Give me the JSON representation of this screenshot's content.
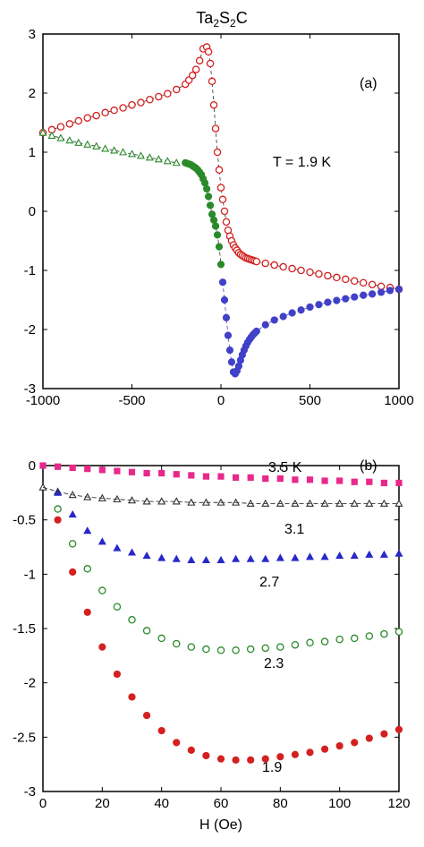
{
  "chart_data": [
    {
      "panel": "(a)",
      "type": "scatter",
      "title": "Ta2S2C",
      "title_main": "Ta",
      "title_sub1": "2",
      "title_mid": "S",
      "title_sub2": "2",
      "title_end": "C",
      "annotation": "T = 1.9 K",
      "xlim": [
        -1000,
        1000
      ],
      "ylim": [
        -3,
        3
      ],
      "x_ticks": [
        "-1000",
        "-500",
        "0",
        "500",
        "1000"
      ],
      "y_ticks": [
        "3",
        "2",
        "1",
        "0",
        "-1",
        "-2",
        "-3"
      ],
      "colors": {
        "red": "#d42020",
        "green": "#2a8a2a",
        "blue": "#4040c8"
      },
      "series": [
        {
          "color": "#d42020",
          "marker": "open-circle",
          "x": [
            -1000,
            -950,
            -900,
            -850,
            -800,
            -750,
            -700,
            -650,
            -600,
            -550,
            -500,
            -450,
            -400,
            -350,
            -300,
            -250,
            -200,
            -180,
            -160,
            -140,
            -120,
            -100,
            -80,
            -70,
            -60,
            -50,
            -40,
            -30,
            -20,
            -10,
            0,
            10,
            20,
            30,
            40,
            50,
            60,
            70,
            80,
            90,
            100,
            110,
            120,
            130,
            140,
            150,
            160,
            170,
            180,
            190,
            200,
            250,
            300,
            350,
            400,
            450,
            500,
            550,
            600,
            650,
            700,
            750,
            800,
            850,
            900,
            950,
            1000
          ],
          "y": [
            1.33,
            1.38,
            1.43,
            1.48,
            1.53,
            1.58,
            1.62,
            1.67,
            1.71,
            1.75,
            1.8,
            1.84,
            1.89,
            1.94,
            1.99,
            2.06,
            2.15,
            2.22,
            2.3,
            2.4,
            2.55,
            2.75,
            2.78,
            2.7,
            2.5,
            2.2,
            1.8,
            1.4,
            1.0,
            0.7,
            0.4,
            0.2,
            0.0,
            -0.18,
            -0.32,
            -0.42,
            -0.5,
            -0.57,
            -0.62,
            -0.66,
            -0.7,
            -0.73,
            -0.75,
            -0.77,
            -0.79,
            -0.8,
            -0.81,
            -0.82,
            -0.83,
            -0.84,
            -0.85,
            -0.88,
            -0.91,
            -0.94,
            -0.97,
            -1.0,
            -1.03,
            -1.06,
            -1.09,
            -1.12,
            -1.15,
            -1.18,
            -1.21,
            -1.24,
            -1.27,
            -1.29,
            -1.32
          ]
        },
        {
          "color": "#2a8a2a",
          "marker": "open-triangle",
          "x": [
            -1000,
            -950,
            -900,
            -850,
            -800,
            -750,
            -700,
            -650,
            -600,
            -550,
            -500,
            -450,
            -400,
            -350,
            -300,
            -250
          ],
          "y": [
            1.33,
            1.28,
            1.24,
            1.2,
            1.16,
            1.13,
            1.1,
            1.06,
            1.03,
            1.0,
            0.97,
            0.94,
            0.91,
            0.88,
            0.85,
            0.82
          ]
        },
        {
          "color": "#2a8a2a",
          "marker": "filled-circle",
          "x": [
            -200,
            -190,
            -180,
            -170,
            -160,
            -150,
            -140,
            -130,
            -120,
            -110,
            -100,
            -90,
            -80,
            -70,
            -60,
            -50,
            -40,
            -30,
            -20,
            -10,
            0
          ],
          "y": [
            0.82,
            0.81,
            0.8,
            0.79,
            0.77,
            0.75,
            0.73,
            0.7,
            0.66,
            0.62,
            0.55,
            0.48,
            0.38,
            0.25,
            0.1,
            -0.05,
            -0.15,
            -0.25,
            -0.4,
            -0.6,
            -0.9
          ]
        },
        {
          "color": "#4040c8",
          "marker": "filled-circle",
          "x": [
            10,
            20,
            30,
            40,
            50,
            60,
            70,
            80,
            90,
            100,
            110,
            120,
            130,
            140,
            150,
            160,
            170,
            180,
            190,
            200,
            250,
            300,
            350,
            400,
            450,
            500,
            550,
            600,
            650,
            700,
            750,
            800,
            850,
            900,
            950,
            1000
          ],
          "y": [
            -1.2,
            -1.5,
            -1.8,
            -2.1,
            -2.35,
            -2.55,
            -2.72,
            -2.75,
            -2.7,
            -2.62,
            -2.52,
            -2.43,
            -2.35,
            -2.28,
            -2.22,
            -2.17,
            -2.13,
            -2.09,
            -2.06,
            -2.03,
            -1.92,
            -1.84,
            -1.78,
            -1.72,
            -1.67,
            -1.62,
            -1.58,
            -1.54,
            -1.51,
            -1.48,
            -1.45,
            -1.42,
            -1.4,
            -1.37,
            -1.34,
            -1.32
          ]
        }
      ]
    },
    {
      "panel": "(b)",
      "type": "scatter",
      "xlabel": "H (Oe)",
      "xlim": [
        0,
        120
      ],
      "ylim": [
        -3,
        0
      ],
      "x_ticks": [
        "0",
        "20",
        "40",
        "60",
        "80",
        "100",
        "120"
      ],
      "y_ticks": [
        "0",
        "-0.5",
        "-1",
        "-1.5",
        "-2",
        "-2.5",
        "-3"
      ],
      "series": [
        {
          "name": "3.5 K",
          "color": "#e8288a",
          "marker": "filled-square",
          "x": [
            0,
            5,
            10,
            15,
            20,
            25,
            30,
            35,
            40,
            45,
            50,
            55,
            60,
            65,
            70,
            75,
            80,
            85,
            90,
            95,
            100,
            105,
            110,
            115,
            120
          ],
          "y": [
            0.0,
            -0.01,
            -0.02,
            -0.03,
            -0.04,
            -0.05,
            -0.06,
            -0.07,
            -0.07,
            -0.08,
            -0.09,
            -0.1,
            -0.1,
            -0.11,
            -0.11,
            -0.12,
            -0.12,
            -0.13,
            -0.13,
            -0.14,
            -0.14,
            -0.15,
            -0.15,
            -0.16,
            -0.16
          ]
        },
        {
          "name": "3.1",
          "color": "#303030",
          "marker": "open-triangle",
          "x": [
            0,
            5,
            10,
            15,
            20,
            25,
            30,
            35,
            40,
            45,
            50,
            55,
            60,
            65,
            70,
            75,
            80,
            85,
            90,
            95,
            100,
            105,
            110,
            115,
            120
          ],
          "y": [
            -0.2,
            -0.24,
            -0.27,
            -0.29,
            -0.3,
            -0.31,
            -0.32,
            -0.33,
            -0.33,
            -0.33,
            -0.34,
            -0.34,
            -0.34,
            -0.34,
            -0.35,
            -0.35,
            -0.35,
            -0.35,
            -0.35,
            -0.35,
            -0.35,
            -0.35,
            -0.35,
            -0.35,
            -0.35
          ]
        },
        {
          "name": "2.7",
          "color": "#2828c8",
          "marker": "filled-triangle",
          "x": [
            5,
            10,
            15,
            20,
            25,
            30,
            35,
            40,
            45,
            50,
            55,
            60,
            65,
            70,
            75,
            80,
            85,
            90,
            95,
            100,
            105,
            110,
            115,
            120
          ],
          "y": [
            -0.25,
            -0.45,
            -0.6,
            -0.7,
            -0.76,
            -0.8,
            -0.83,
            -0.85,
            -0.86,
            -0.87,
            -0.87,
            -0.87,
            -0.86,
            -0.86,
            -0.86,
            -0.85,
            -0.85,
            -0.84,
            -0.84,
            -0.83,
            -0.83,
            -0.82,
            -0.82,
            -0.81
          ]
        },
        {
          "name": "2.3",
          "color": "#2a8a2a",
          "marker": "open-circle",
          "x": [
            5,
            10,
            15,
            20,
            25,
            30,
            35,
            40,
            45,
            50,
            55,
            60,
            65,
            70,
            75,
            80,
            85,
            90,
            95,
            100,
            105,
            110,
            115,
            120
          ],
          "y": [
            -0.4,
            -0.72,
            -0.95,
            -1.15,
            -1.3,
            -1.42,
            -1.52,
            -1.59,
            -1.64,
            -1.67,
            -1.69,
            -1.7,
            -1.7,
            -1.69,
            -1.68,
            -1.67,
            -1.65,
            -1.63,
            -1.62,
            -1.6,
            -1.59,
            -1.57,
            -1.55,
            -1.53
          ]
        },
        {
          "name": "1.9",
          "color": "#d42020",
          "marker": "filled-circle",
          "x": [
            5,
            10,
            15,
            20,
            25,
            30,
            35,
            40,
            45,
            50,
            55,
            60,
            65,
            70,
            75,
            80,
            85,
            90,
            95,
            100,
            105,
            110,
            115,
            120
          ],
          "y": [
            -0.5,
            -0.98,
            -1.35,
            -1.67,
            -1.92,
            -2.13,
            -2.3,
            -2.44,
            -2.55,
            -2.62,
            -2.67,
            -2.7,
            -2.71,
            -2.71,
            -2.7,
            -2.68,
            -2.66,
            -2.64,
            -2.61,
            -2.58,
            -2.55,
            -2.51,
            -2.47,
            -2.43
          ]
        }
      ]
    }
  ]
}
